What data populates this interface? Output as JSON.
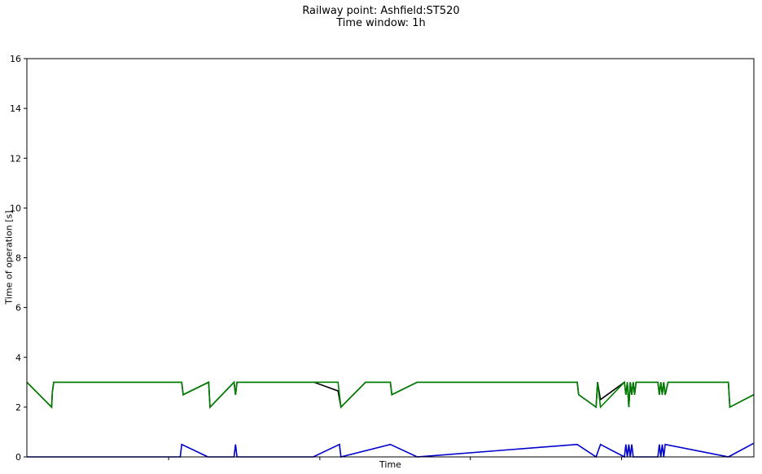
{
  "chart_data": {
    "type": "line",
    "title": "Railway point: Ashfield:ST520",
    "subtitle": "Time window: 1h",
    "xlabel": "Time",
    "ylabel": "Time of operation [s]",
    "ylim": [
      0,
      16
    ],
    "yticks": [
      0,
      2,
      4,
      6,
      8,
      10,
      12,
      14,
      16
    ],
    "xlim": [
      0,
      100
    ],
    "xticks": [
      19.5,
      40.3,
      61,
      81.8
    ],
    "grid": false,
    "legend": "none",
    "series": [
      {
        "color": "#000000",
        "x": [
          0,
          3.4,
          3.5,
          3.7,
          21.3,
          21.5,
          25.0,
          25.2,
          28.5,
          28.7,
          28.9,
          29.4,
          39.5,
          42.8,
          43.2,
          46.6,
          50.0,
          50.2,
          53.7,
          56.0,
          75.7,
          75.9,
          78.3,
          78.5,
          78.9,
          82.2,
          82.4,
          82.6,
          82.8,
          83.0,
          83.2,
          83.4,
          83.6,
          83.8,
          84.2,
          86.8,
          87.0,
          87.2,
          87.4,
          87.6,
          87.8,
          88.2,
          96.5,
          96.7,
          100
        ],
        "y": [
          3.0,
          2.0,
          2.6,
          3.0,
          3.0,
          2.5,
          3.0,
          2.0,
          3.0,
          2.5,
          3.0,
          3.0,
          3.0,
          2.65,
          2.0,
          3.0,
          3.0,
          2.5,
          3.0,
          3.0,
          3.0,
          2.5,
          2.0,
          3.0,
          2.3,
          3.0,
          2.5,
          3.0,
          2.0,
          3.0,
          2.5,
          3.0,
          2.5,
          3.0,
          3.0,
          3.0,
          2.5,
          3.0,
          2.5,
          3.0,
          2.5,
          3.0,
          3.0,
          2.0,
          2.5
        ]
      },
      {
        "color": "#008000",
        "x": [
          0,
          3.4,
          3.5,
          3.7,
          21.3,
          21.5,
          25.0,
          25.2,
          28.5,
          28.7,
          28.9,
          29.4,
          39.5,
          42.8,
          43.2,
          46.6,
          50.0,
          50.2,
          53.7,
          56.0,
          75.7,
          75.9,
          78.3,
          78.5,
          78.9,
          82.2,
          82.4,
          82.6,
          82.8,
          83.0,
          83.2,
          83.4,
          83.6,
          83.8,
          84.2,
          86.8,
          87.0,
          87.2,
          87.4,
          87.6,
          87.8,
          88.2,
          96.5,
          96.7,
          100
        ],
        "y": [
          3.0,
          2.0,
          2.6,
          3.0,
          3.0,
          2.5,
          3.0,
          2.0,
          3.0,
          2.5,
          3.0,
          3.0,
          3.0,
          3.0,
          2.0,
          3.0,
          3.0,
          2.5,
          3.0,
          3.0,
          3.0,
          2.5,
          2.0,
          3.0,
          2.0,
          3.0,
          2.5,
          3.0,
          2.0,
          3.0,
          2.5,
          3.0,
          2.5,
          3.0,
          3.0,
          3.0,
          2.5,
          3.0,
          2.5,
          3.0,
          2.5,
          3.0,
          3.0,
          2.0,
          2.5
        ]
      },
      {
        "color": "#0000cc",
        "x": [
          0,
          21.1,
          21.3,
          24.9,
          28.5,
          28.7,
          28.9,
          39.4,
          43.0,
          43.2,
          50.0,
          53.7,
          75.7,
          78.3,
          78.9,
          82.2,
          82.4,
          82.6,
          82.8,
          83.0,
          83.2,
          83.4,
          83.6,
          86.8,
          87.0,
          87.2,
          87.4,
          87.6,
          87.8,
          96.5,
          100
        ],
        "y": [
          0,
          0,
          0.5,
          0,
          0,
          0.5,
          0,
          0,
          0.5,
          0,
          0.5,
          0,
          0.5,
          0,
          0.5,
          0,
          0.5,
          0,
          0.5,
          0,
          0.5,
          0,
          0,
          0,
          0.5,
          0,
          0.5,
          0,
          0.5,
          0,
          0.55
        ]
      }
    ]
  }
}
